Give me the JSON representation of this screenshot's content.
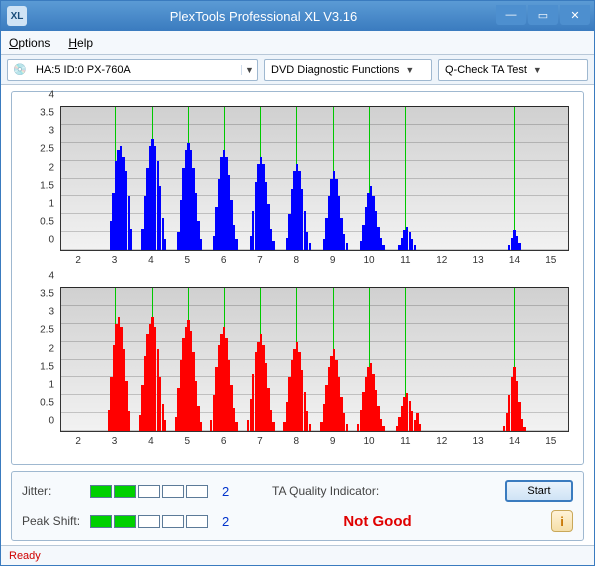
{
  "window": {
    "title": "PlexTools Professional XL V3.16",
    "icon_label": "XL"
  },
  "menu": {
    "options": "Options",
    "help": "Help"
  },
  "toolbar": {
    "drive_icon": "💿",
    "drive_text": "HA:5 ID:0  PX-760A",
    "combo1": "DVD Diagnostic Functions",
    "combo2": "Q-Check TA Test"
  },
  "axes": {
    "y_ticks": [
      0,
      0.5,
      1,
      1.5,
      2,
      2.5,
      3,
      3.5,
      4
    ],
    "y_max": 4,
    "x_min": 1.5,
    "x_max": 15.5,
    "x_ticks": [
      2,
      3,
      4,
      5,
      6,
      7,
      8,
      9,
      10,
      11,
      12,
      13,
      14,
      15
    ],
    "grid_x": [
      3,
      4,
      5,
      6,
      7,
      8,
      9,
      10,
      11,
      14
    ],
    "grid_color": "#00c800"
  },
  "chart_top": {
    "bar_color": "#0000ff",
    "bars": [
      {
        "x": 2.88,
        "y": 0.8
      },
      {
        "x": 2.95,
        "y": 1.6
      },
      {
        "x": 3.02,
        "y": 2.5
      },
      {
        "x": 3.09,
        "y": 2.8
      },
      {
        "x": 3.16,
        "y": 2.9
      },
      {
        "x": 3.23,
        "y": 2.6
      },
      {
        "x": 3.3,
        "y": 2.2
      },
      {
        "x": 3.37,
        "y": 1.5
      },
      {
        "x": 3.44,
        "y": 0.6
      },
      {
        "x": 3.75,
        "y": 0.6
      },
      {
        "x": 3.82,
        "y": 1.5
      },
      {
        "x": 3.89,
        "y": 2.3
      },
      {
        "x": 3.96,
        "y": 2.9
      },
      {
        "x": 4.03,
        "y": 3.1
      },
      {
        "x": 4.1,
        "y": 2.9
      },
      {
        "x": 4.17,
        "y": 2.5
      },
      {
        "x": 4.24,
        "y": 1.8
      },
      {
        "x": 4.31,
        "y": 0.9
      },
      {
        "x": 4.38,
        "y": 0.3
      },
      {
        "x": 4.74,
        "y": 0.5
      },
      {
        "x": 4.81,
        "y": 1.4
      },
      {
        "x": 4.88,
        "y": 2.3
      },
      {
        "x": 4.95,
        "y": 2.8
      },
      {
        "x": 5.02,
        "y": 3.0
      },
      {
        "x": 5.09,
        "y": 2.8
      },
      {
        "x": 5.16,
        "y": 2.3
      },
      {
        "x": 5.23,
        "y": 1.6
      },
      {
        "x": 5.3,
        "y": 0.8
      },
      {
        "x": 5.37,
        "y": 0.3
      },
      {
        "x": 5.72,
        "y": 0.4
      },
      {
        "x": 5.79,
        "y": 1.2
      },
      {
        "x": 5.86,
        "y": 2.0
      },
      {
        "x": 5.93,
        "y": 2.6
      },
      {
        "x": 6.0,
        "y": 2.8
      },
      {
        "x": 6.07,
        "y": 2.6
      },
      {
        "x": 6.14,
        "y": 2.1
      },
      {
        "x": 6.21,
        "y": 1.4
      },
      {
        "x": 6.28,
        "y": 0.7
      },
      {
        "x": 6.35,
        "y": 0.3
      },
      {
        "x": 6.74,
        "y": 0.4
      },
      {
        "x": 6.81,
        "y": 1.1
      },
      {
        "x": 6.88,
        "y": 1.9
      },
      {
        "x": 6.95,
        "y": 2.4
      },
      {
        "x": 7.02,
        "y": 2.6
      },
      {
        "x": 7.09,
        "y": 2.4
      },
      {
        "x": 7.16,
        "y": 1.9
      },
      {
        "x": 7.23,
        "y": 1.3
      },
      {
        "x": 7.3,
        "y": 0.6
      },
      {
        "x": 7.37,
        "y": 0.25
      },
      {
        "x": 7.74,
        "y": 0.35
      },
      {
        "x": 7.81,
        "y": 1.0
      },
      {
        "x": 7.88,
        "y": 1.7
      },
      {
        "x": 7.95,
        "y": 2.2
      },
      {
        "x": 8.02,
        "y": 2.4
      },
      {
        "x": 8.09,
        "y": 2.2
      },
      {
        "x": 8.16,
        "y": 1.7
      },
      {
        "x": 8.23,
        "y": 1.1
      },
      {
        "x": 8.3,
        "y": 0.5
      },
      {
        "x": 8.37,
        "y": 0.2
      },
      {
        "x": 8.76,
        "y": 0.3
      },
      {
        "x": 8.83,
        "y": 0.9
      },
      {
        "x": 8.9,
        "y": 1.5
      },
      {
        "x": 8.97,
        "y": 2.0
      },
      {
        "x": 9.04,
        "y": 2.2
      },
      {
        "x": 9.11,
        "y": 2.0
      },
      {
        "x": 9.18,
        "y": 1.5
      },
      {
        "x": 9.25,
        "y": 0.9
      },
      {
        "x": 9.32,
        "y": 0.45
      },
      {
        "x": 9.39,
        "y": 0.2
      },
      {
        "x": 9.78,
        "y": 0.25
      },
      {
        "x": 9.85,
        "y": 0.7
      },
      {
        "x": 9.92,
        "y": 1.2
      },
      {
        "x": 9.99,
        "y": 1.6
      },
      {
        "x": 10.06,
        "y": 1.8
      },
      {
        "x": 10.13,
        "y": 1.5
      },
      {
        "x": 10.2,
        "y": 1.1
      },
      {
        "x": 10.27,
        "y": 0.65
      },
      {
        "x": 10.34,
        "y": 0.35
      },
      {
        "x": 10.41,
        "y": 0.15
      },
      {
        "x": 10.85,
        "y": 0.15
      },
      {
        "x": 10.92,
        "y": 0.35
      },
      {
        "x": 10.99,
        "y": 0.55
      },
      {
        "x": 11.06,
        "y": 0.65
      },
      {
        "x": 11.13,
        "y": 0.5
      },
      {
        "x": 11.2,
        "y": 0.3
      },
      {
        "x": 11.27,
        "y": 0.15
      },
      {
        "x": 13.88,
        "y": 0.15
      },
      {
        "x": 13.95,
        "y": 0.35
      },
      {
        "x": 14.02,
        "y": 0.55
      },
      {
        "x": 14.09,
        "y": 0.4
      },
      {
        "x": 14.16,
        "y": 0.2
      }
    ]
  },
  "chart_bottom": {
    "bar_color": "#ff0000",
    "bars": [
      {
        "x": 2.82,
        "y": 0.6
      },
      {
        "x": 2.89,
        "y": 1.5
      },
      {
        "x": 2.96,
        "y": 2.4
      },
      {
        "x": 3.03,
        "y": 3.0
      },
      {
        "x": 3.1,
        "y": 3.2
      },
      {
        "x": 3.17,
        "y": 2.9
      },
      {
        "x": 3.24,
        "y": 2.3
      },
      {
        "x": 3.31,
        "y": 1.4
      },
      {
        "x": 3.38,
        "y": 0.55
      },
      {
        "x": 3.68,
        "y": 0.45
      },
      {
        "x": 3.75,
        "y": 1.3
      },
      {
        "x": 3.82,
        "y": 2.1
      },
      {
        "x": 3.89,
        "y": 2.7
      },
      {
        "x": 3.96,
        "y": 3.0
      },
      {
        "x": 4.03,
        "y": 3.2
      },
      {
        "x": 4.1,
        "y": 2.9
      },
      {
        "x": 4.17,
        "y": 2.3
      },
      {
        "x": 4.24,
        "y": 1.5
      },
      {
        "x": 4.31,
        "y": 0.75
      },
      {
        "x": 4.38,
        "y": 0.3
      },
      {
        "x": 4.67,
        "y": 0.4
      },
      {
        "x": 4.74,
        "y": 1.2
      },
      {
        "x": 4.81,
        "y": 2.0
      },
      {
        "x": 4.88,
        "y": 2.6
      },
      {
        "x": 4.95,
        "y": 2.9
      },
      {
        "x": 5.02,
        "y": 3.1
      },
      {
        "x": 5.09,
        "y": 2.8
      },
      {
        "x": 5.16,
        "y": 2.2
      },
      {
        "x": 5.23,
        "y": 1.4
      },
      {
        "x": 5.3,
        "y": 0.7
      },
      {
        "x": 5.37,
        "y": 0.25
      },
      {
        "x": 5.65,
        "y": 0.3
      },
      {
        "x": 5.72,
        "y": 1.0
      },
      {
        "x": 5.79,
        "y": 1.8
      },
      {
        "x": 5.86,
        "y": 2.4
      },
      {
        "x": 5.93,
        "y": 2.7
      },
      {
        "x": 6.0,
        "y": 2.9
      },
      {
        "x": 6.07,
        "y": 2.6
      },
      {
        "x": 6.14,
        "y": 2.0
      },
      {
        "x": 6.21,
        "y": 1.3
      },
      {
        "x": 6.28,
        "y": 0.65
      },
      {
        "x": 6.35,
        "y": 0.25
      },
      {
        "x": 6.67,
        "y": 0.3
      },
      {
        "x": 6.74,
        "y": 0.9
      },
      {
        "x": 6.81,
        "y": 1.6
      },
      {
        "x": 6.88,
        "y": 2.2
      },
      {
        "x": 6.95,
        "y": 2.5
      },
      {
        "x": 7.02,
        "y": 2.7
      },
      {
        "x": 7.09,
        "y": 2.4
      },
      {
        "x": 7.16,
        "y": 1.9
      },
      {
        "x": 7.23,
        "y": 1.2
      },
      {
        "x": 7.3,
        "y": 0.6
      },
      {
        "x": 7.37,
        "y": 0.25
      },
      {
        "x": 7.67,
        "y": 0.25
      },
      {
        "x": 7.74,
        "y": 0.8
      },
      {
        "x": 7.81,
        "y": 1.5
      },
      {
        "x": 7.88,
        "y": 2.0
      },
      {
        "x": 7.95,
        "y": 2.3
      },
      {
        "x": 8.02,
        "y": 2.5
      },
      {
        "x": 8.09,
        "y": 2.2
      },
      {
        "x": 8.16,
        "y": 1.7
      },
      {
        "x": 8.23,
        "y": 1.1
      },
      {
        "x": 8.3,
        "y": 0.55
      },
      {
        "x": 8.37,
        "y": 0.2
      },
      {
        "x": 8.69,
        "y": 0.25
      },
      {
        "x": 8.76,
        "y": 0.75
      },
      {
        "x": 8.83,
        "y": 1.3
      },
      {
        "x": 8.9,
        "y": 1.8
      },
      {
        "x": 8.97,
        "y": 2.1
      },
      {
        "x": 9.04,
        "y": 2.3
      },
      {
        "x": 9.11,
        "y": 2.0
      },
      {
        "x": 9.18,
        "y": 1.5
      },
      {
        "x": 9.25,
        "y": 0.95
      },
      {
        "x": 9.32,
        "y": 0.5
      },
      {
        "x": 9.39,
        "y": 0.2
      },
      {
        "x": 9.71,
        "y": 0.2
      },
      {
        "x": 9.78,
        "y": 0.6
      },
      {
        "x": 9.85,
        "y": 1.1
      },
      {
        "x": 9.92,
        "y": 1.5
      },
      {
        "x": 9.99,
        "y": 1.8
      },
      {
        "x": 10.06,
        "y": 1.9
      },
      {
        "x": 10.13,
        "y": 1.6
      },
      {
        "x": 10.2,
        "y": 1.15
      },
      {
        "x": 10.27,
        "y": 0.7
      },
      {
        "x": 10.34,
        "y": 0.35
      },
      {
        "x": 10.41,
        "y": 0.15
      },
      {
        "x": 10.78,
        "y": 0.15
      },
      {
        "x": 10.85,
        "y": 0.4
      },
      {
        "x": 10.92,
        "y": 0.7
      },
      {
        "x": 10.99,
        "y": 0.95
      },
      {
        "x": 11.06,
        "y": 1.05
      },
      {
        "x": 11.13,
        "y": 0.85
      },
      {
        "x": 11.2,
        "y": 0.55
      },
      {
        "x": 11.27,
        "y": 0.3
      },
      {
        "x": 11.34,
        "y": 0.5
      },
      {
        "x": 11.41,
        "y": 0.2
      },
      {
        "x": 13.74,
        "y": 0.15
      },
      {
        "x": 13.81,
        "y": 0.5
      },
      {
        "x": 13.88,
        "y": 1.0
      },
      {
        "x": 13.95,
        "y": 1.5
      },
      {
        "x": 14.02,
        "y": 1.8
      },
      {
        "x": 14.09,
        "y": 1.4
      },
      {
        "x": 14.16,
        "y": 0.8
      },
      {
        "x": 14.23,
        "y": 0.35
      },
      {
        "x": 14.3,
        "y": 0.1
      }
    ]
  },
  "status": {
    "jitter_label": "Jitter:",
    "jitter_filled": 2,
    "jitter_total": 5,
    "jitter_num": "2",
    "peakshift_label": "Peak Shift:",
    "peakshift_filled": 2,
    "peakshift_total": 5,
    "peakshift_num": "2",
    "qi_label": "TA Quality Indicator:",
    "qi_value": "Not Good",
    "start_label": "Start",
    "info_label": "i"
  },
  "statusbar": {
    "text": "Ready"
  },
  "colors": {
    "fill_box": "#00d000",
    "num_text": "#0033cc",
    "qi_text": "#e00000"
  }
}
